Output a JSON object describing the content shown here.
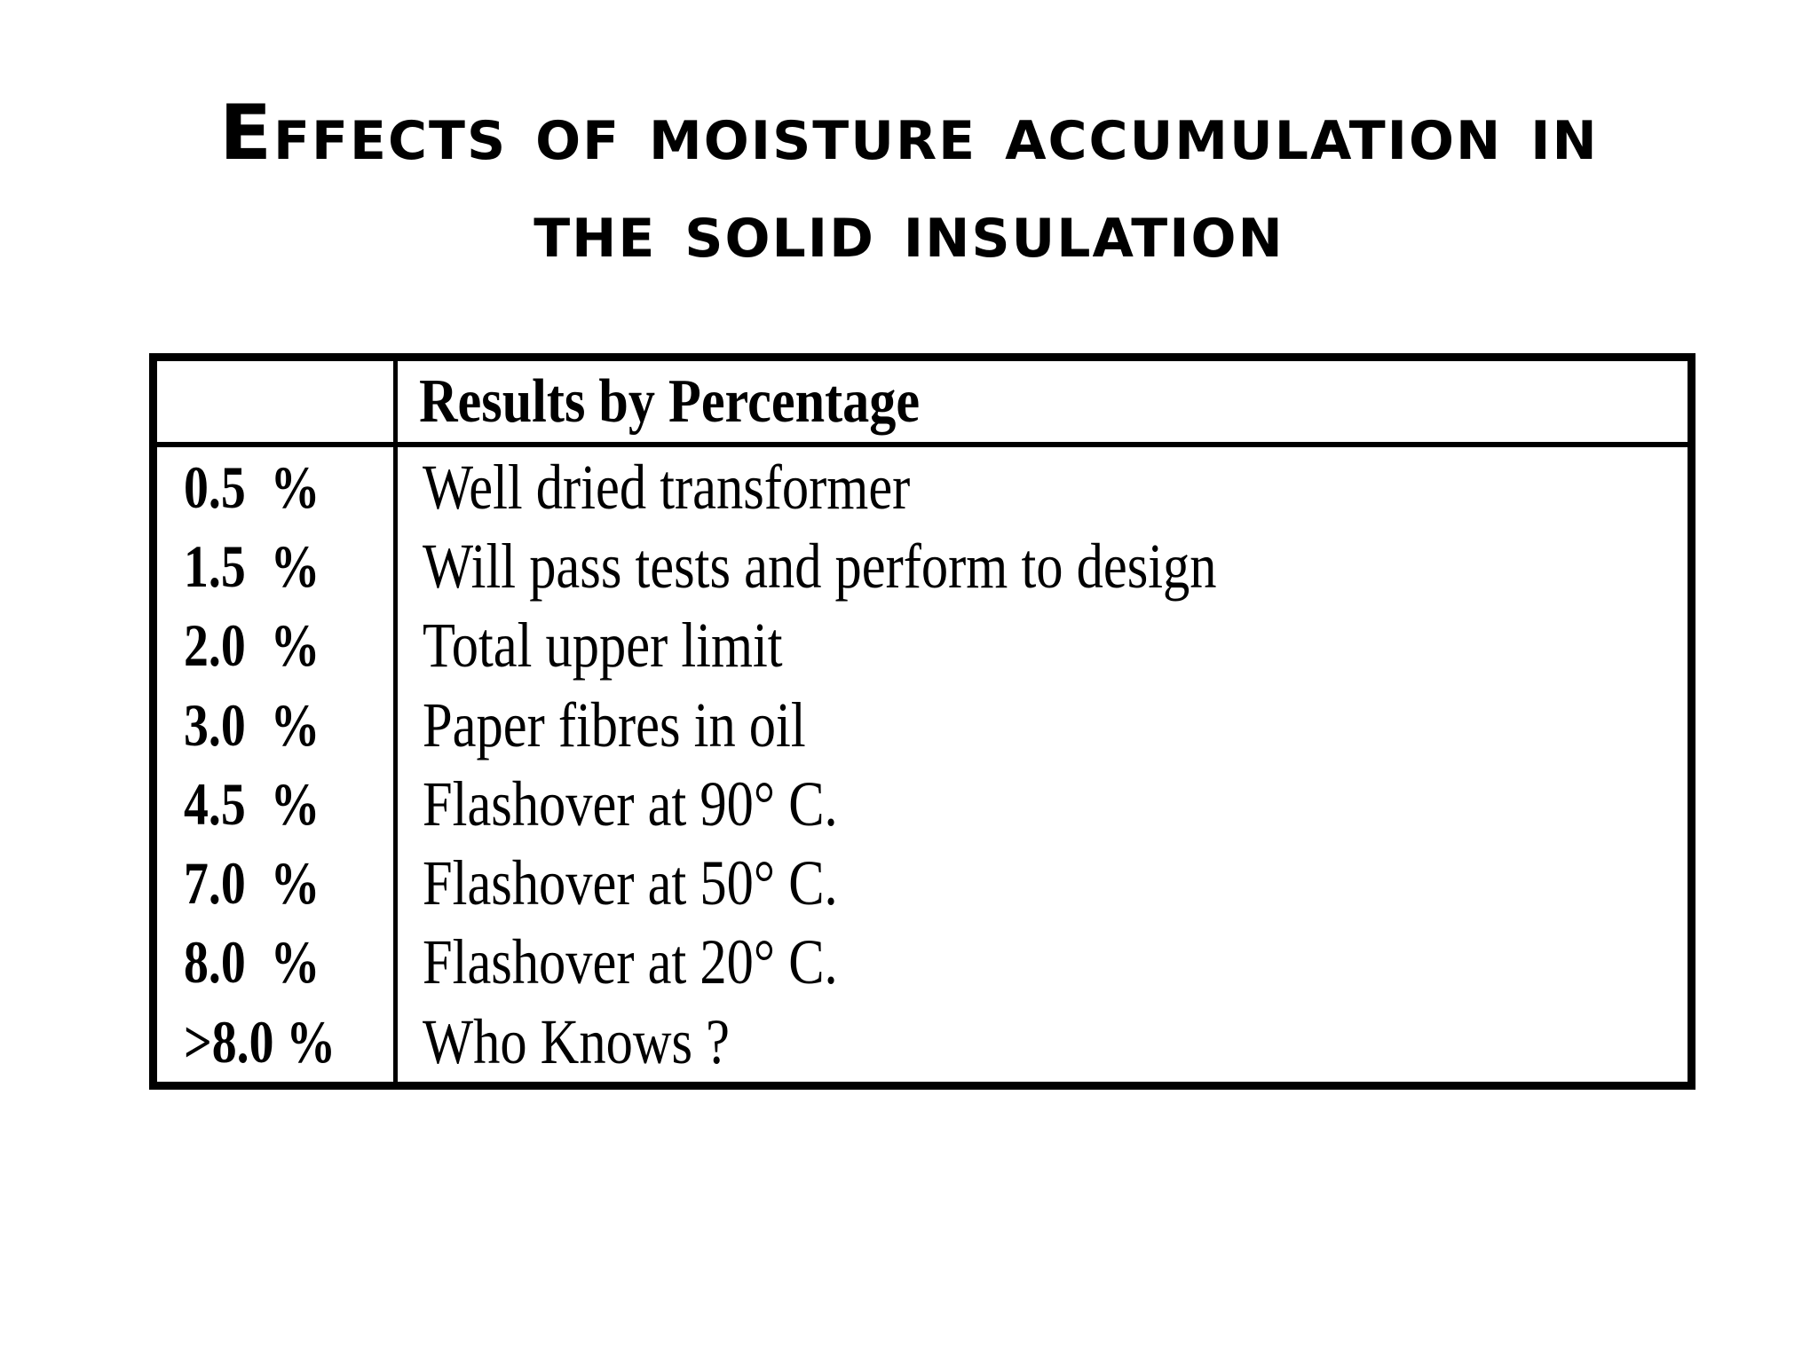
{
  "title": {
    "line1": "Effects of moisture accumulation in",
    "line2": "the solid insulation"
  },
  "table": {
    "corner": "",
    "header": "Results by Percentage",
    "rows": [
      {
        "pct": "0.5  %",
        "desc": "Well dried transformer"
      },
      {
        "pct": "1.5  %",
        "desc": "Will pass tests and perform to design"
      },
      {
        "pct": "2.0  %",
        "desc": "Total upper limit"
      },
      {
        "pct": "3.0  %",
        "desc": "Paper fibres in oil"
      },
      {
        "pct": "4.5  %",
        "desc": "Flashover at 90° C."
      },
      {
        "pct": "7.0  %",
        "desc": "Flashover at 50° C."
      },
      {
        "pct": "8.0  %",
        "desc": "Flashover at 20° C."
      },
      {
        "pct": ">8.0 %",
        "desc": "Who Knows ?"
      }
    ]
  }
}
